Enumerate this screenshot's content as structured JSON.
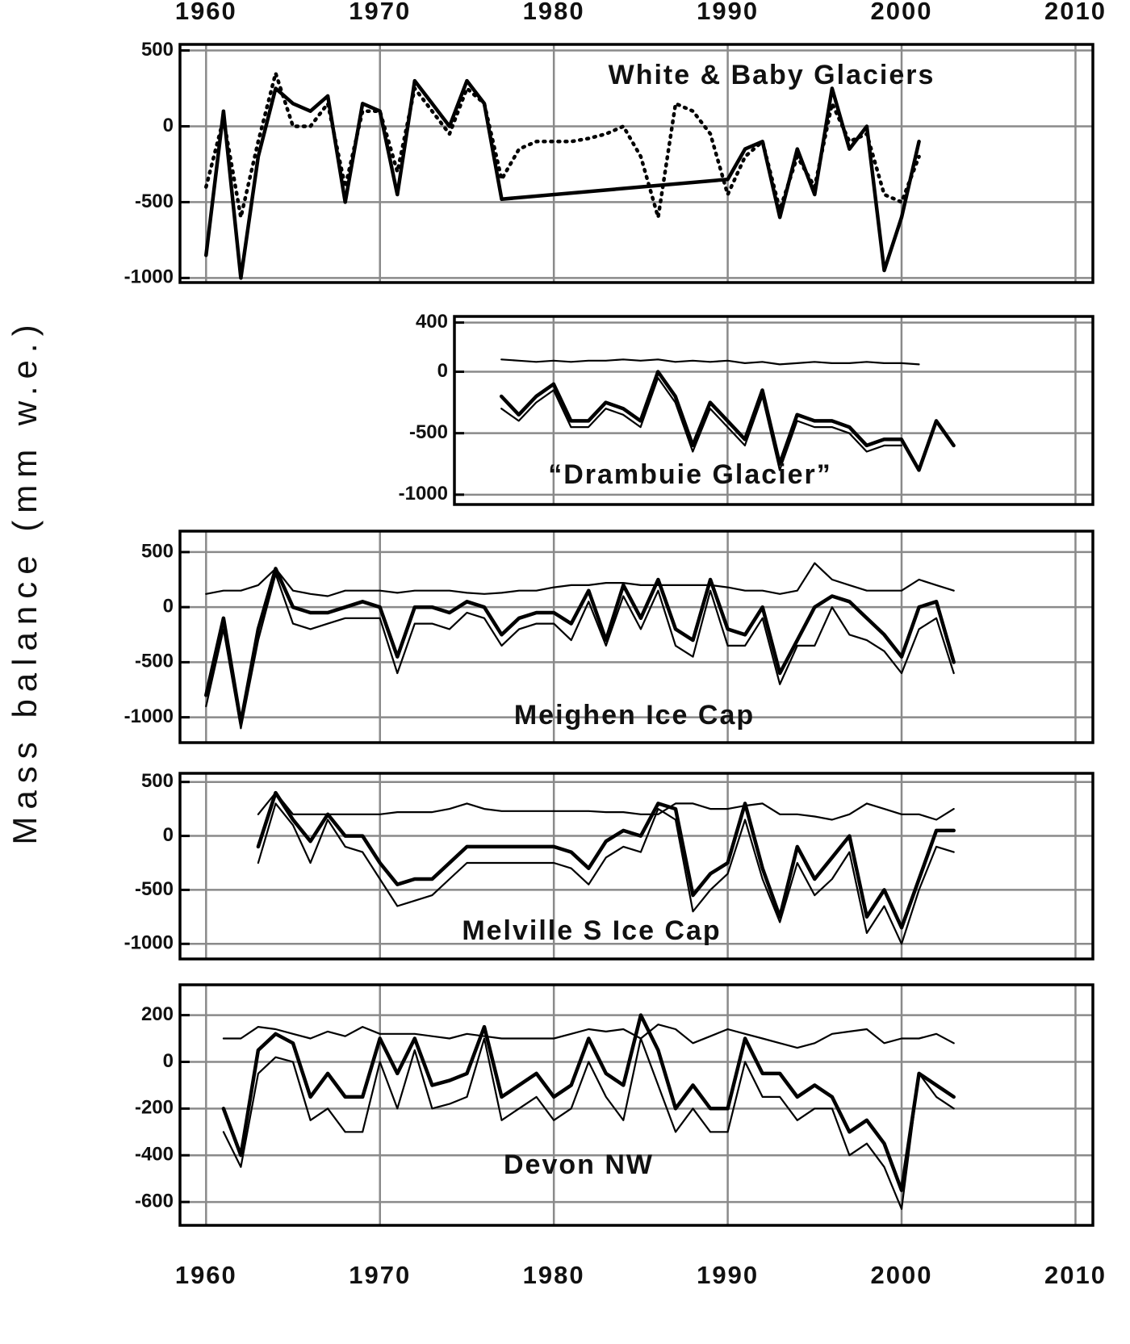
{
  "figure": {
    "ylabel": "Mass balance (mm w.e.)",
    "xticks": [
      1960,
      1970,
      1980,
      1990,
      2000,
      2010
    ]
  },
  "chart_data": [
    {
      "type": "line",
      "title": "White & Baby Glaciers",
      "xlim": [
        1958.5,
        2011
      ],
      "ylim": [
        -1030,
        540
      ],
      "yticks": [
        500,
        0,
        -500,
        -1000
      ],
      "grid": true,
      "x": [
        1960,
        1961,
        1962,
        1963,
        1964,
        1965,
        1966,
        1967,
        1968,
        1969,
        1970,
        1971,
        1972,
        1973,
        1974,
        1975,
        1976,
        1977,
        1978,
        1979,
        1980,
        1981,
        1982,
        1983,
        1984,
        1985,
        1986,
        1987,
        1988,
        1989,
        1990,
        1991,
        1992,
        1993,
        1994,
        1995,
        1996,
        1997,
        1998,
        1999,
        2000,
        2001
      ],
      "series": [
        {
          "color": "#000000",
          "weight": "thick",
          "x": [
            1960,
            1961,
            1962,
            1963,
            1964,
            1965,
            1966,
            1967,
            1968,
            1969,
            1970,
            1971,
            1972,
            1973,
            1974,
            1975,
            1976,
            1977,
            1990,
            1991,
            1992,
            1993,
            1994,
            1995,
            1996,
            1997,
            1998,
            1999,
            2000,
            2001
          ],
          "values": [
            -850,
            100,
            -1000,
            -200,
            250,
            150,
            100,
            200,
            -500,
            150,
            100,
            -450,
            300,
            150,
            0,
            300,
            150,
            -480,
            -350,
            -150,
            -100,
            -600,
            -150,
            -450,
            250,
            -150,
            0,
            -950,
            -600,
            -100
          ]
        },
        {
          "color": "#000000",
          "weight": "thick",
          "style": "dotted",
          "values": [
            -400,
            50,
            -600,
            -100,
            350,
            0,
            0,
            150,
            -400,
            100,
            100,
            -300,
            250,
            100,
            -50,
            250,
            150,
            -350,
            -150,
            -100,
            -100,
            -100,
            -80,
            -50,
            0,
            -200,
            -600,
            150,
            100,
            -50,
            -450,
            -200,
            -100,
            -550,
            -200,
            -400,
            150,
            -100,
            -50,
            -450,
            -500,
            -200
          ]
        }
      ]
    },
    {
      "type": "line",
      "title": "“Drambuie Glacier”",
      "xlim": [
        1974.3,
        2011
      ],
      "ylim": [
        -1080,
        450
      ],
      "yticks": [
        400,
        0,
        -500,
        -1000
      ],
      "grid": true,
      "x": [
        1977,
        1978,
        1979,
        1980,
        1981,
        1982,
        1983,
        1984,
        1985,
        1986,
        1987,
        1988,
        1989,
        1990,
        1991,
        1992,
        1993,
        1994,
        1995,
        1996,
        1997,
        1998,
        1999,
        2000,
        2001,
        2002,
        2003
      ],
      "series": [
        {
          "color": "#000000",
          "weight": "thin",
          "values": [
            100,
            90,
            80,
            90,
            80,
            90,
            90,
            100,
            90,
            100,
            80,
            90,
            80,
            90,
            70,
            80,
            60,
            70,
            80,
            70,
            70,
            80,
            70,
            70,
            60,
            null,
            null
          ]
        },
        {
          "color": "#000000",
          "weight": "thick",
          "values": [
            -200,
            -350,
            -200,
            -100,
            -400,
            -400,
            -250,
            -300,
            -400,
            0,
            -200,
            -600,
            -250,
            -400,
            -550,
            -150,
            -750,
            -350,
            -400,
            -400,
            -450,
            -600,
            -550,
            -550,
            -800,
            -400,
            -600
          ]
        },
        {
          "color": "#000000",
          "weight": "thin",
          "values": [
            -300,
            -400,
            -250,
            -150,
            -450,
            -450,
            -300,
            -350,
            -450,
            -50,
            -250,
            -650,
            -300,
            -450,
            -600,
            -200,
            -800,
            -400,
            -450,
            -450,
            -500,
            -650,
            -600,
            -600,
            null,
            null,
            null
          ]
        }
      ]
    },
    {
      "type": "line",
      "title": "Meighen Ice Cap",
      "xlim": [
        1958.5,
        2011
      ],
      "ylim": [
        -1230,
        690
      ],
      "yticks": [
        500,
        0,
        -500,
        -1000
      ],
      "grid": true,
      "x": [
        1960,
        1961,
        1962,
        1963,
        1964,
        1965,
        1966,
        1967,
        1968,
        1969,
        1970,
        1971,
        1972,
        1973,
        1974,
        1975,
        1976,
        1977,
        1978,
        1979,
        1980,
        1981,
        1982,
        1983,
        1984,
        1985,
        1986,
        1987,
        1988,
        1989,
        1990,
        1991,
        1992,
        1993,
        1994,
        1995,
        1996,
        1997,
        1998,
        1999,
        2000,
        2001,
        2002,
        2003
      ],
      "series": [
        {
          "color": "#000000",
          "weight": "thin",
          "values": [
            120,
            150,
            150,
            200,
            350,
            150,
            120,
            100,
            150,
            150,
            150,
            130,
            150,
            150,
            150,
            130,
            120,
            130,
            150,
            150,
            180,
            200,
            200,
            220,
            220,
            200,
            200,
            200,
            200,
            200,
            180,
            150,
            150,
            120,
            150,
            400,
            250,
            200,
            150,
            150,
            150,
            250,
            200,
            150
          ]
        },
        {
          "color": "#000000",
          "weight": "thick",
          "values": [
            -800,
            -100,
            -1050,
            -200,
            350,
            0,
            -50,
            -50,
            0,
            50,
            0,
            -450,
            0,
            0,
            -50,
            50,
            0,
            -250,
            -100,
            -50,
            -50,
            -150,
            150,
            -300,
            200,
            -100,
            250,
            -200,
            -300,
            250,
            -200,
            -250,
            0,
            -600,
            -300,
            0,
            100,
            50,
            -100,
            -250,
            -450,
            0,
            50,
            -500
          ]
        },
        {
          "color": "#000000",
          "weight": "thin",
          "values": [
            -900,
            -200,
            -1100,
            -300,
            300,
            -150,
            -200,
            -150,
            -100,
            -100,
            -100,
            -600,
            -150,
            -150,
            -200,
            -50,
            -100,
            -350,
            -200,
            -150,
            -150,
            -300,
            50,
            -350,
            100,
            -200,
            150,
            -350,
            -450,
            150,
            -350,
            -350,
            -100,
            -700,
            -350,
            -350,
            0,
            -250,
            -300,
            -400,
            -600,
            -200,
            -100,
            -600
          ]
        }
      ]
    },
    {
      "type": "line",
      "title": "Melville S Ice Cap",
      "xlim": [
        1958.5,
        2011
      ],
      "ylim": [
        -1140,
        580
      ],
      "yticks": [
        500,
        0,
        -500,
        -1000
      ],
      "grid": true,
      "x": [
        1963,
        1964,
        1965,
        1966,
        1967,
        1968,
        1969,
        1970,
        1971,
        1972,
        1973,
        1974,
        1975,
        1976,
        1977,
        1978,
        1979,
        1980,
        1981,
        1982,
        1983,
        1984,
        1985,
        1986,
        1987,
        1988,
        1989,
        1990,
        1991,
        1992,
        1993,
        1994,
        1995,
        1996,
        1997,
        1998,
        1999,
        2000,
        2001,
        2002,
        2003
      ],
      "series": [
        {
          "color": "#000000",
          "weight": "thin",
          "values": [
            200,
            400,
            200,
            200,
            200,
            200,
            200,
            200,
            220,
            220,
            220,
            250,
            300,
            250,
            230,
            230,
            230,
            230,
            230,
            230,
            220,
            220,
            200,
            200,
            300,
            300,
            250,
            250,
            280,
            300,
            200,
            200,
            180,
            150,
            200,
            300,
            250,
            200,
            200,
            150,
            250
          ]
        },
        {
          "color": "#000000",
          "weight": "thick",
          "values": [
            -100,
            400,
            150,
            -50,
            200,
            0,
            0,
            -250,
            -450,
            -400,
            -400,
            -250,
            -100,
            -100,
            -100,
            -100,
            -100,
            -100,
            -150,
            -300,
            -50,
            50,
            0,
            300,
            250,
            -550,
            -350,
            -250,
            300,
            -300,
            -750,
            -100,
            -400,
            -200,
            0,
            -750,
            -500,
            -850,
            -400,
            50,
            50
          ]
        },
        {
          "color": "#000000",
          "weight": "thin",
          "values": [
            -250,
            300,
            100,
            -250,
            150,
            -100,
            -150,
            -400,
            -650,
            -600,
            -550,
            -400,
            -250,
            -250,
            -250,
            -250,
            -250,
            -250,
            -300,
            -450,
            -200,
            -100,
            -150,
            250,
            150,
            -700,
            -500,
            -350,
            150,
            -400,
            -800,
            -250,
            -550,
            -400,
            -150,
            -900,
            -650,
            -1000,
            -500,
            -100,
            -150
          ]
        }
      ]
    },
    {
      "type": "line",
      "title": "Devon NW",
      "xlim": [
        1958.5,
        2011
      ],
      "ylim": [
        -700,
        330
      ],
      "yticks": [
        200,
        0,
        -200,
        -400,
        -600
      ],
      "grid": true,
      "x": [
        1961,
        1962,
        1963,
        1964,
        1965,
        1966,
        1967,
        1968,
        1969,
        1970,
        1971,
        1972,
        1973,
        1974,
        1975,
        1976,
        1977,
        1978,
        1979,
        1980,
        1981,
        1982,
        1983,
        1984,
        1985,
        1986,
        1987,
        1988,
        1989,
        1990,
        1991,
        1992,
        1993,
        1994,
        1995,
        1996,
        1997,
        1998,
        1999,
        2000,
        2001,
        2002,
        2003
      ],
      "series": [
        {
          "color": "#000000",
          "weight": "thin",
          "values": [
            100,
            100,
            150,
            140,
            120,
            100,
            130,
            110,
            150,
            120,
            120,
            120,
            110,
            100,
            120,
            110,
            100,
            100,
            100,
            100,
            120,
            140,
            130,
            140,
            100,
            160,
            140,
            80,
            110,
            140,
            120,
            100,
            80,
            60,
            80,
            120,
            130,
            140,
            80,
            100,
            100,
            120,
            80
          ]
        },
        {
          "color": "#000000",
          "weight": "thick",
          "values": [
            -200,
            -400,
            50,
            120,
            80,
            -150,
            -50,
            -150,
            -150,
            100,
            -50,
            100,
            -100,
            -80,
            -50,
            150,
            -150,
            -100,
            -50,
            -150,
            -100,
            100,
            -50,
            -100,
            200,
            50,
            -200,
            -100,
            -200,
            -200,
            100,
            -50,
            -50,
            -150,
            -100,
            -150,
            -300,
            -250,
            -350,
            -550,
            -50,
            -100,
            -150
          ]
        },
        {
          "color": "#000000",
          "weight": "thin",
          "values": [
            -300,
            -450,
            -50,
            20,
            0,
            -250,
            -200,
            -300,
            -300,
            0,
            -200,
            50,
            -200,
            -180,
            -150,
            100,
            -250,
            -200,
            -150,
            -250,
            -200,
            0,
            -150,
            -250,
            100,
            -100,
            -300,
            -200,
            -300,
            -300,
            0,
            -150,
            -150,
            -250,
            -200,
            -200,
            -400,
            -350,
            -450,
            -630,
            -50,
            -150,
            -200
          ]
        }
      ]
    }
  ]
}
